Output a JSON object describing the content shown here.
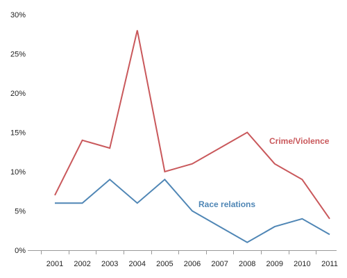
{
  "chart_data": {
    "type": "line",
    "title": "",
    "xlabel": "",
    "ylabel": "",
    "x": [
      "2001",
      "2002",
      "2003",
      "2004",
      "2005",
      "2006",
      "2007",
      "2008",
      "2009",
      "2010",
      "2011"
    ],
    "y_ticks": [
      "0%",
      "5%",
      "10%",
      "15%",
      "20%",
      "25%",
      "30%"
    ],
    "ylim": [
      0,
      30
    ],
    "grid": false,
    "legend": "direct labels on lines",
    "series": [
      {
        "name": "Crime/Violence",
        "color": "#c9585b",
        "values": [
          7,
          14,
          13,
          28,
          10,
          11,
          13,
          15,
          11,
          9,
          4
        ]
      },
      {
        "name": "Race relations",
        "color": "#4f86b5",
        "values": [
          6,
          6,
          9,
          6,
          9,
          5,
          3,
          1,
          3,
          4,
          2
        ]
      }
    ]
  }
}
